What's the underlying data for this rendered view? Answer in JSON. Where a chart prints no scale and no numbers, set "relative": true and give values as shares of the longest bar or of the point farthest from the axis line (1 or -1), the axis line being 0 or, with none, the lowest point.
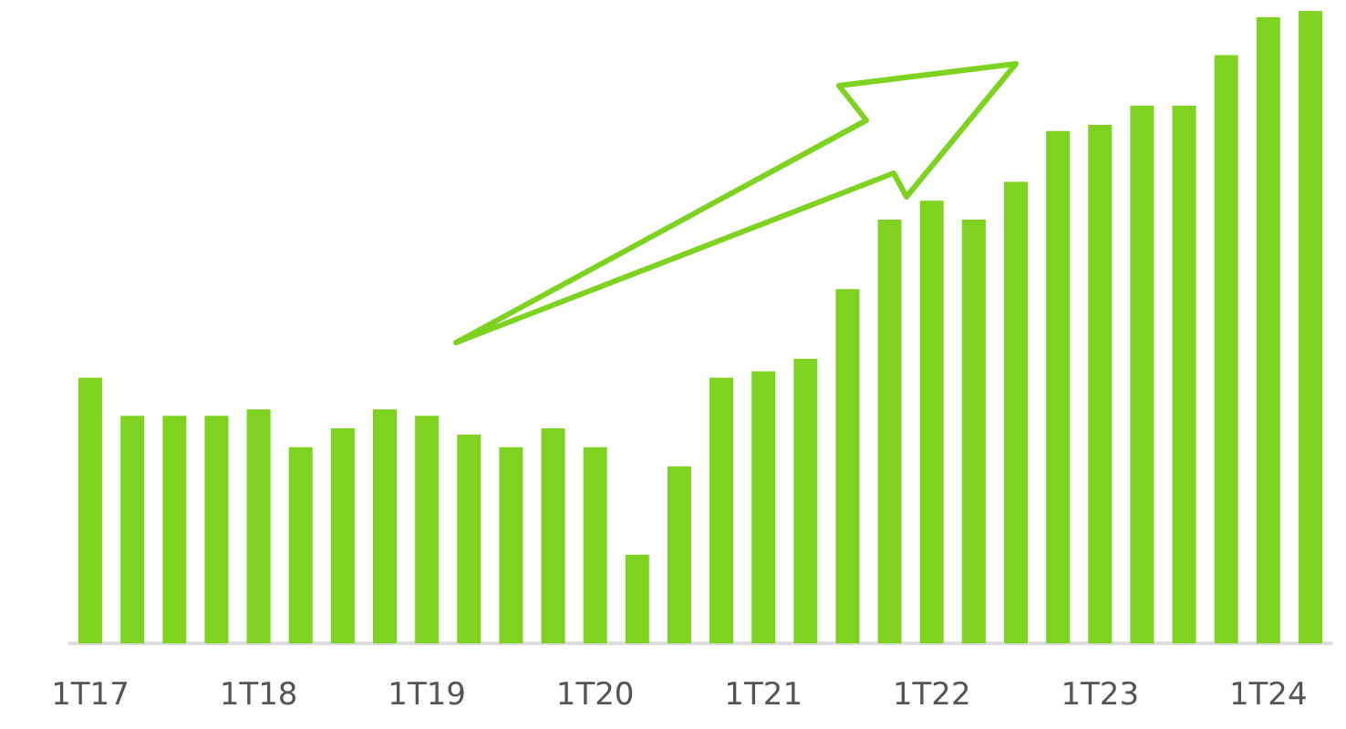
{
  "chart_data": {
    "type": "bar",
    "relative": true,
    "color": "#7ed321",
    "categories": [
      "1T17",
      null,
      null,
      null,
      "1T18",
      null,
      null,
      null,
      "1T19",
      null,
      null,
      null,
      "1T20",
      null,
      null,
      null,
      "1T21",
      null,
      null,
      null,
      "1T22",
      null,
      null,
      null,
      "1T23",
      null,
      null,
      null,
      "1T24",
      null
    ],
    "values": [
      0.42,
      0.36,
      0.36,
      0.36,
      0.37,
      0.31,
      0.34,
      0.37,
      0.36,
      0.33,
      0.31,
      0.34,
      0.31,
      0.14,
      0.28,
      0.42,
      0.43,
      0.45,
      0.56,
      0.67,
      0.7,
      0.67,
      0.73,
      0.81,
      0.82,
      0.85,
      0.85,
      0.93,
      0.99,
      1
    ]
  }
}
